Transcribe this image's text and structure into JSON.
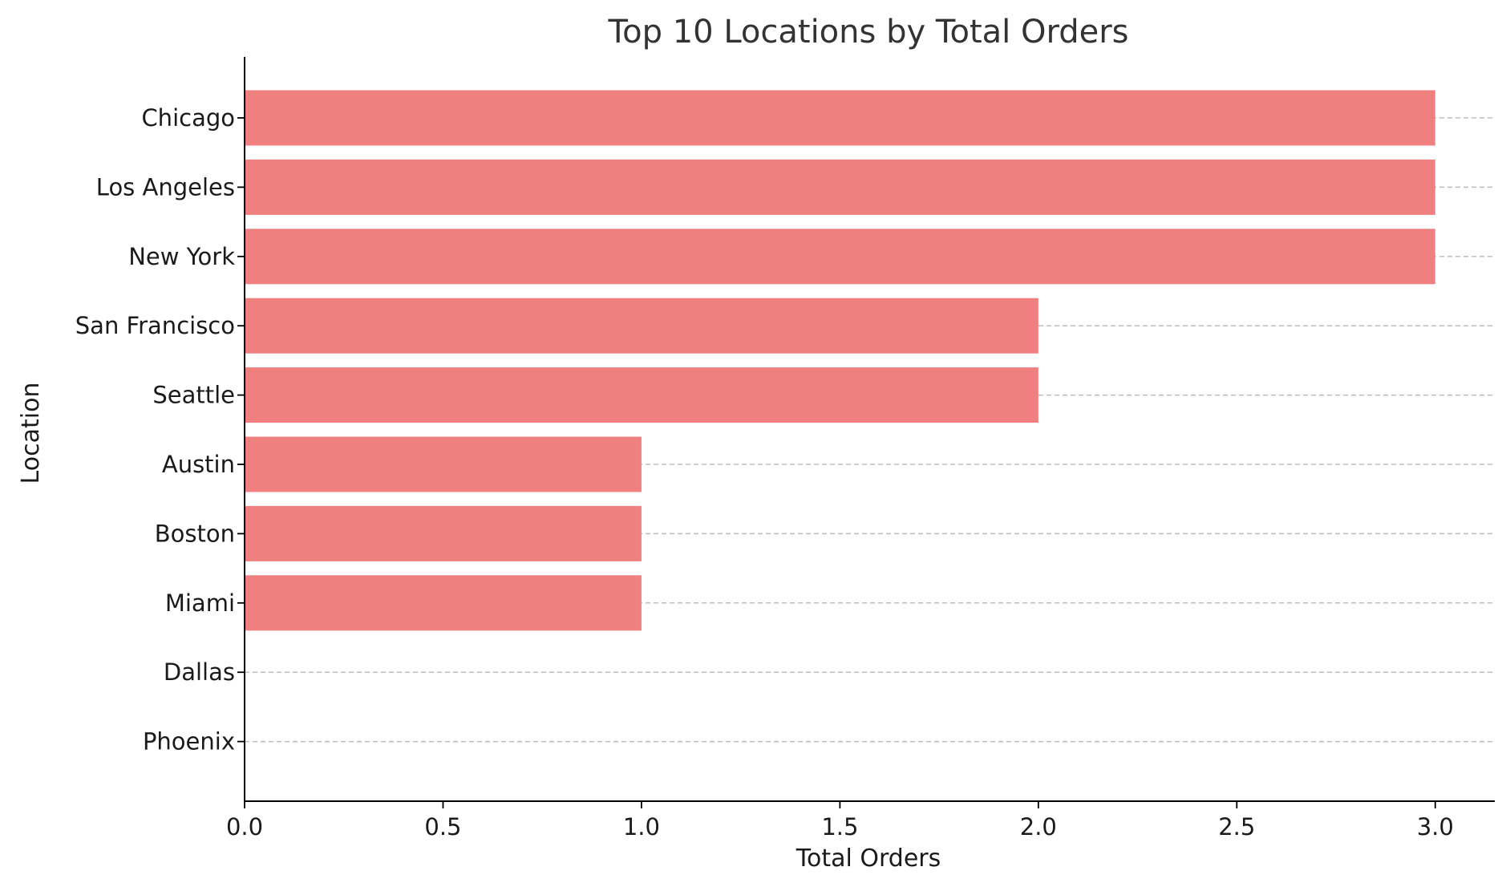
{
  "chart_data": {
    "type": "bar",
    "orientation": "horizontal",
    "title": "Top 10 Locations by Total Orders",
    "xlabel": "Total Orders",
    "ylabel": "Location",
    "categories": [
      "Chicago",
      "Los Angeles",
      "New York",
      "San Francisco",
      "Seattle",
      "Austin",
      "Boston",
      "Miami",
      "Dallas",
      "Phoenix"
    ],
    "values": [
      3,
      3,
      3,
      2,
      2,
      1,
      1,
      1,
      0,
      0
    ],
    "xlim": [
      0,
      3.15
    ],
    "xticks": [
      "0.0",
      "0.5",
      "1.0",
      "1.5",
      "2.0",
      "2.5",
      "3.0"
    ],
    "grid": "y-dashed",
    "bar_color": "#f08080",
    "grid_color": "#bdbdbd"
  }
}
